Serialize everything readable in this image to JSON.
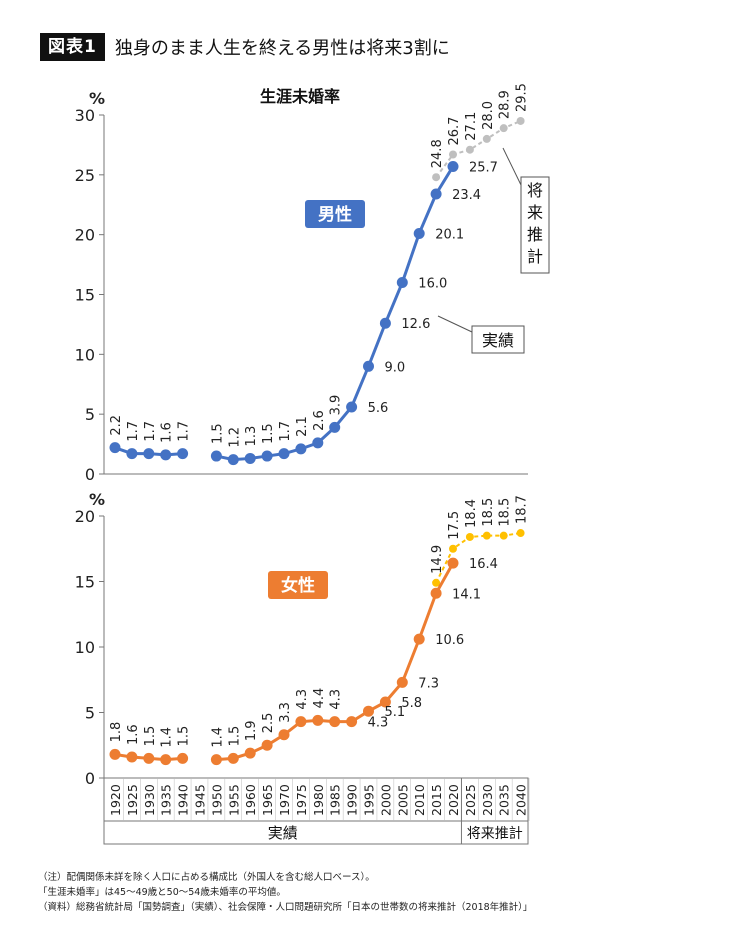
{
  "header": {
    "badge": "図表1",
    "title": "独身のまま人生を終える男性は将来3割に"
  },
  "chart_data": [
    {
      "type": "line",
      "title": "生涯未婚率",
      "series_label": "男性",
      "ylabel": "%",
      "ylim": [
        0,
        30
      ],
      "yticks": [
        "0",
        "5",
        "10",
        "15",
        "20",
        "25",
        "30"
      ],
      "x": [
        "1920",
        "1925",
        "1930",
        "1935",
        "1940",
        "1945",
        "1950",
        "1955",
        "1960",
        "1965",
        "1970",
        "1975",
        "1980",
        "1985",
        "1990",
        "1995",
        "2000",
        "2005",
        "2010",
        "2015",
        "2020",
        "2025",
        "2030",
        "2035",
        "2040"
      ],
      "series": [
        {
          "name": "実績",
          "values": [
            2.2,
            1.7,
            1.7,
            1.6,
            1.7,
            null,
            1.5,
            1.2,
            1.3,
            1.5,
            1.7,
            2.1,
            2.6,
            3.9,
            5.6,
            9.0,
            12.6,
            16.0,
            20.1,
            23.4,
            25.7,
            null,
            null,
            null,
            null
          ],
          "labels": [
            "2.2",
            "1.7",
            "1.7",
            "1.6",
            "1.7",
            "",
            "1.5",
            "1.2",
            "1.3",
            "1.5",
            "1.7",
            "2.1",
            "2.6",
            "3.9",
            "5.6",
            "9.0",
            "12.6",
            "16.0",
            "20.1",
            "23.4",
            "25.7",
            "",
            "",
            "",
            ""
          ]
        },
        {
          "name": "将来推計",
          "values": [
            null,
            null,
            null,
            null,
            null,
            null,
            null,
            null,
            null,
            null,
            null,
            null,
            null,
            null,
            null,
            null,
            null,
            null,
            null,
            24.8,
            26.7,
            27.1,
            28.0,
            28.9,
            29.5
          ],
          "labels": [
            "",
            "",
            "",
            "",
            "",
            "",
            "",
            "",
            "",
            "",
            "",
            "",
            "",
            "",
            "",
            "",
            "",
            "",
            "",
            "24.8",
            "26.7",
            "27.1",
            "28.0",
            "28.9",
            "29.5"
          ]
        }
      ],
      "annotations": {
        "projection": "将来推計",
        "actual": "実績"
      },
      "colors": {
        "actual": "#4472c4",
        "projection": "#bfbfbf"
      }
    },
    {
      "type": "line",
      "series_label": "女性",
      "ylabel": "%",
      "ylim": [
        0,
        20
      ],
      "yticks": [
        "0",
        "5",
        "10",
        "15",
        "20"
      ],
      "x": [
        "1920",
        "1925",
        "1930",
        "1935",
        "1940",
        "1945",
        "1950",
        "1955",
        "1960",
        "1965",
        "1970",
        "1975",
        "1980",
        "1985",
        "1990",
        "1995",
        "2000",
        "2005",
        "2010",
        "2015",
        "2020",
        "2025",
        "2030",
        "2035",
        "2040"
      ],
      "series": [
        {
          "name": "実績",
          "values": [
            1.8,
            1.6,
            1.5,
            1.4,
            1.5,
            null,
            1.4,
            1.5,
            1.9,
            2.5,
            3.3,
            4.3,
            4.4,
            4.3,
            4.3,
            5.1,
            5.8,
            7.3,
            10.6,
            14.1,
            16.4,
            null,
            null,
            null,
            null
          ],
          "labels": [
            "1.8",
            "1.6",
            "1.5",
            "1.4",
            "1.5",
            "",
            "1.4",
            "1.5",
            "1.9",
            "2.5",
            "3.3",
            "4.3",
            "4.4",
            "4.3",
            "4.3",
            "5.1",
            "5.8",
            "7.3",
            "10.6",
            "14.1",
            "16.4",
            "",
            "",
            "",
            ""
          ]
        },
        {
          "name": "将来推計",
          "values": [
            null,
            null,
            null,
            null,
            null,
            null,
            null,
            null,
            null,
            null,
            null,
            null,
            null,
            null,
            null,
            null,
            null,
            null,
            null,
            14.9,
            17.5,
            18.4,
            18.5,
            18.5,
            18.7
          ],
          "labels": [
            "",
            "",
            "",
            "",
            "",
            "",
            "",
            "",
            "",
            "",
            "",
            "",
            "",
            "",
            "",
            "",
            "",
            "",
            "",
            "14.9",
            "17.5",
            "18.4",
            "18.5",
            "18.5",
            "18.7"
          ]
        }
      ],
      "colors": {
        "actual": "#ed7d31",
        "projection": "#ffc000"
      }
    }
  ],
  "xaxis_groups": {
    "actual": "実績",
    "projection": "将来推計"
  },
  "notes": [
    "（注）配偶関係未詳を除く人口に占める構成比（外国人を含む総人口ベース）。",
    "「生涯未婚率」は45～49歳と50～54歳未婚率の平均値。",
    "（資料）総務省統計局「国勢調査」（実績）、社会保障・人口問題研究所「日本の世帯数の将来推計（2018年推計）」"
  ]
}
